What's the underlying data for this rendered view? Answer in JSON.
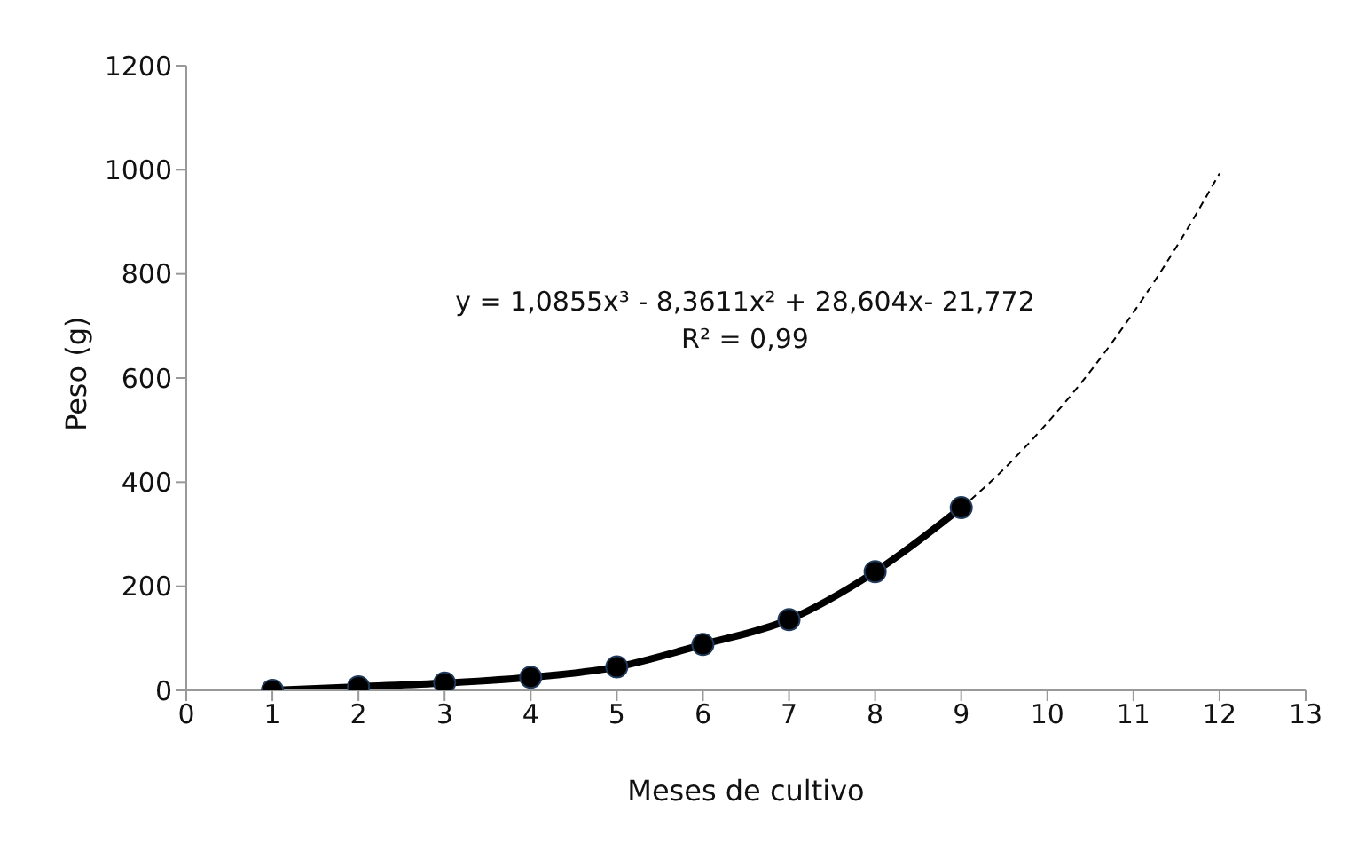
{
  "chart_data": {
    "type": "line",
    "xlabel": "Meses de cultivo",
    "ylabel": "Peso (g)",
    "xlim": [
      0,
      13
    ],
    "xticks": [
      0,
      1,
      2,
      3,
      4,
      5,
      6,
      7,
      8,
      9,
      10,
      11,
      12,
      13
    ],
    "ylim": [
      0,
      1200
    ],
    "yticks": [
      0,
      200,
      400,
      600,
      800,
      1000,
      1200
    ],
    "grid": false,
    "series": [
      {
        "color": "#000000",
        "marker": "circle",
        "line_style": "solid",
        "x": [
          1,
          2,
          3,
          4,
          5,
          6,
          7,
          8,
          9
        ],
        "values": [
          0,
          7,
          14,
          25,
          45,
          88,
          136,
          228,
          351
        ]
      },
      {
        "color": "#000000",
        "marker": "none",
        "line_style": "dashed",
        "x": [
          9,
          9.5,
          10,
          10.5,
          11,
          11.5,
          12
        ],
        "values": [
          350,
          426,
          514,
          613,
          726,
          852,
          993
        ]
      }
    ],
    "annotations": [
      "y = 1,0855x³ - 8,3611x² + 28,604x- 21,772",
      "R² = 0,99"
    ]
  }
}
